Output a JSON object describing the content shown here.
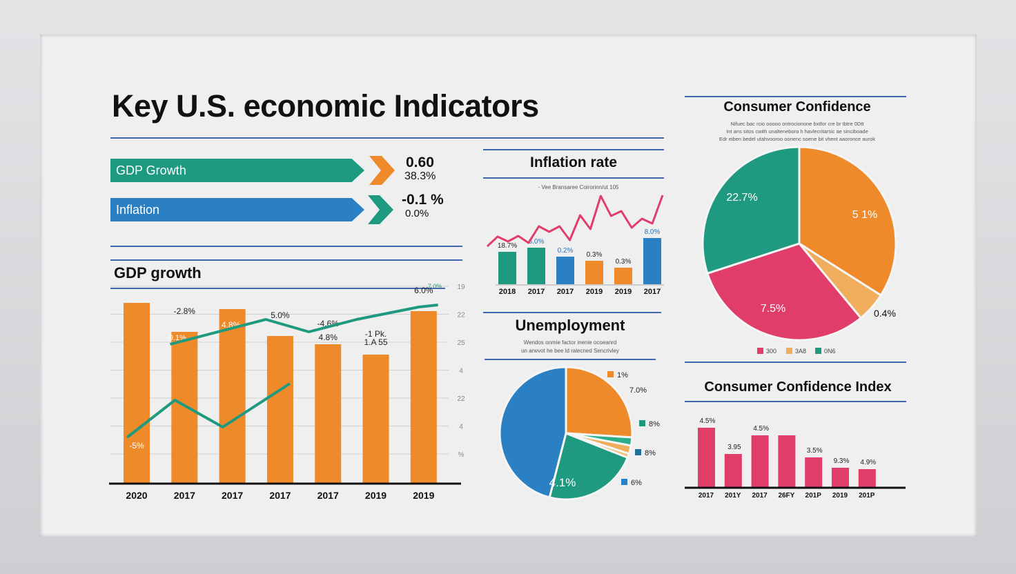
{
  "title": "Key U.S. economic Indicators",
  "kpis": [
    {
      "label": "GDP Growth",
      "value": "0.60",
      "sub": "38.3%",
      "color": "#1e9a80",
      "chevron": "#ee8a2a"
    },
    {
      "label": "Inflation",
      "value": "-0.1 %",
      "sub": "0.0%",
      "color": "#2a80c3",
      "chevron": "#1e9a80"
    }
  ],
  "colors": {
    "orange": "#ee8a2a",
    "teal": "#1f9a80",
    "blue": "#2a80c3",
    "pink": "#e03d6a",
    "light_orange": "#f0ad5c",
    "navy": "#3f67b0"
  },
  "chart_data": [
    {
      "type": "bar",
      "title": "GDP growth",
      "categories": [
        "2020",
        "2017",
        "2017",
        "2017",
        "2017",
        "2019",
        "2019"
      ],
      "values": [
        87,
        73,
        84,
        71,
        67,
        62,
        83
      ],
      "bar_labels": [
        "",
        "-2.8%",
        "4.8%",
        "5.0%",
        "-4.6%",
        "-1 Pk.",
        "6.0%"
      ],
      "inner_labels": [
        "",
        "0.1%",
        "",
        "",
        "",
        "",
        ""
      ],
      "extra_labels": [
        "-5%",
        "",
        "",
        "",
        "4.8%",
        "1.A 55",
        ""
      ],
      "right_ticks": [
        "19",
        "22",
        "25",
        "4",
        "22",
        "4",
        "%"
      ],
      "top_tick_note": "7.0%",
      "lines": [
        {
          "color": "#1f9a80",
          "x": [
            1.2,
            3.2,
            4.1,
            5.1,
            6.4,
            6.8
          ],
          "y": [
            67,
            79,
            73,
            79,
            85,
            86
          ]
        },
        {
          "color": "#1f9a80",
          "x": [
            0.3,
            1.3,
            2.3,
            3.7
          ],
          "y": [
            22,
            40,
            27,
            48
          ]
        }
      ],
      "ylim": [
        0,
        100
      ],
      "grid": true
    },
    {
      "type": "bar",
      "title": "Inflation rate",
      "subtitle": "- Vee Bransaree Coirorinn/ut 105",
      "categories": [
        "2018",
        "2017",
        "2017",
        "2019",
        "2019",
        "2017"
      ],
      "values": [
        47,
        53,
        40,
        34,
        24,
        67
      ],
      "bar_labels": [
        "18.7%",
        "6.0%",
        "0.2%",
        "0.3%",
        "0.3%",
        "8.0%"
      ],
      "bar_colors": [
        "#1f9a80",
        "#1f9a80",
        "#2a80c3",
        "#ee8a2a",
        "#ee8a2a",
        "#2a80c3"
      ],
      "line": {
        "color": "#e03d6a",
        "y": [
          55,
          69,
          62,
          70,
          60,
          84,
          76,
          84,
          64,
          100,
          80,
          128,
          99,
          106,
          82,
          95,
          88,
          129
        ]
      },
      "ylim": [
        0,
        140
      ]
    },
    {
      "type": "pie",
      "title": "Unemployment",
      "subtitle": "Wendos onmie factor inenie ocoeanrd\nun arwvot he bee ld ralecned Sencrivley",
      "slices": [
        {
          "label": "",
          "share": 26,
          "color": "#ee8a2a"
        },
        {
          "label": "1%",
          "share": 2,
          "color": "#2aae8c"
        },
        {
          "label": "7.0%",
          "share": 2,
          "color": "#f0ad5c"
        },
        {
          "label": "",
          "share": 1,
          "color": "#f0c070"
        },
        {
          "label": "",
          "share": 23,
          "color": "#1f9a80"
        },
        {
          "label": "4.1%",
          "share": 46,
          "color": "#2a80c3"
        }
      ],
      "legend": [
        {
          "label": "1%",
          "color": "#ee8a2a"
        },
        {
          "label": "7.0%",
          "color": null
        },
        {
          "label": "8%",
          "color": "#1f9a80"
        },
        {
          "label": "8%",
          "color": "#1f6f9a"
        },
        {
          "label": "6%",
          "color": "#2a80c3"
        }
      ]
    },
    {
      "type": "pie",
      "title": "Consumer Confidence",
      "subtitle": "Nifuec bac rcio ooooo ontrocionone bxtfor cre br tbtre 0Dtt\nInt ans sitos cwith unaltenebora h havlecritarsic ae sinciboade\nEdr eiben bedel utahvooroo oonenc soene bit vhent aaoronce aurok",
      "slices": [
        {
          "label": "5 1%",
          "share": 34,
          "color": "#ee8a2a"
        },
        {
          "label": "0.4%",
          "share": 5,
          "color": "#f0ad5c"
        },
        {
          "label": "7.5%",
          "share": 31,
          "color": "#e03d6a"
        },
        {
          "label": "22.7%",
          "share": 30,
          "color": "#1f9a80"
        }
      ],
      "legend": [
        {
          "label": "300",
          "color": "#e03d6a"
        },
        {
          "label": "3A8",
          "color": "#f0ad5c"
        },
        {
          "label": "0N6",
          "color": "#1f9a80"
        }
      ]
    },
    {
      "type": "bar",
      "title": "Consumer Confidence Index",
      "categories": [
        "2017",
        "201Y",
        "2017",
        "26FY",
        "201P",
        "2019",
        "201P"
      ],
      "values": [
        86,
        48,
        75,
        75,
        43,
        28,
        26
      ],
      "bar_labels": [
        "4.5%",
        "3.95",
        "4.5%",
        "",
        "3.5%",
        "9.3%",
        "4.9%"
      ],
      "color": "#e03d6a",
      "ylim": [
        0,
        100
      ]
    }
  ]
}
